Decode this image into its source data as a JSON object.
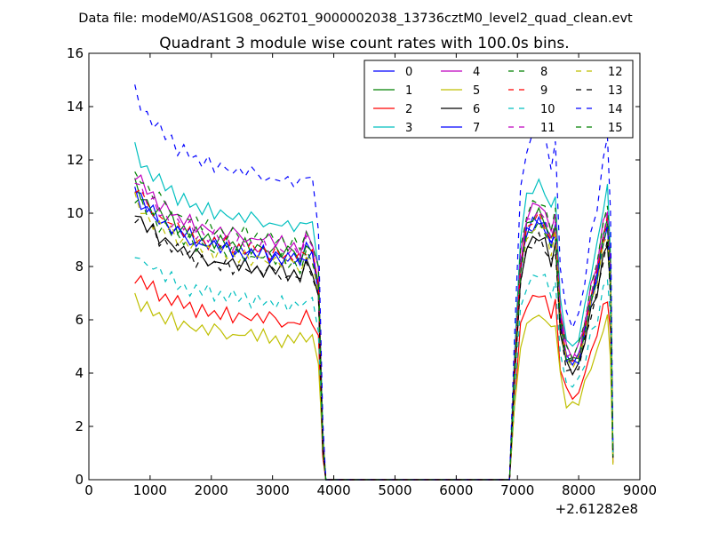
{
  "suptitle": "Data file: modeM0/AS1G08_062T01_9000002038_13736cztM0_level2_quad_clean.evt",
  "chart_data": {
    "type": "line",
    "title": "Quadrant 3 module wise count rates with 100.0s bins.",
    "xlabel": "",
    "ylabel": "",
    "x_offset_label": "+2.61282e8",
    "xlim": [
      0,
      9000
    ],
    "ylim": [
      0,
      16
    ],
    "x_ticks": [
      "0",
      "1000",
      "2000",
      "3000",
      "4000",
      "5000",
      "6000",
      "7000",
      "8000",
      "9000"
    ],
    "y_ticks": [
      "0",
      "2",
      "4",
      "6",
      "8",
      "10",
      "12",
      "14",
      "16"
    ],
    "legend": {
      "position": "top-right",
      "columns": 4
    },
    "x_segments": [
      [
        750,
        850,
        950,
        1050,
        1150,
        1250,
        1350,
        1450,
        1550,
        1650,
        1750,
        1850,
        1950,
        2050,
        2150,
        2250,
        2350,
        2450,
        2550,
        2650,
        2750,
        2850,
        2950,
        3050,
        3150,
        3250,
        3350,
        3450,
        3550,
        3650,
        3750,
        3820,
        3870
      ],
      [
        6870,
        6950,
        7050,
        7150,
        7250,
        7350,
        7450,
        7550,
        7620,
        7700,
        7800,
        7900,
        8000,
        8100,
        8200,
        8300,
        8400,
        8470,
        8520,
        8560
      ]
    ],
    "x_gap": [
      3870,
      6870
    ],
    "series": [
      {
        "name": "0",
        "color": "#0000ff",
        "dash": "solid",
        "factor": 1.0
      },
      {
        "name": "1",
        "color": "#008000",
        "dash": "solid",
        "factor": 1.02
      },
      {
        "name": "2",
        "color": "#ff0000",
        "dash": "solid",
        "factor": 0.71
      },
      {
        "name": "3",
        "color": "#00bfbf",
        "dash": "solid",
        "factor": 1.14
      },
      {
        "name": "4",
        "color": "#bf00bf",
        "dash": "solid",
        "factor": 1.06
      },
      {
        "name": "5",
        "color": "#bfbf00",
        "dash": "solid",
        "factor": 0.63
      },
      {
        "name": "6",
        "color": "#000000",
        "dash": "solid",
        "factor": 0.93
      },
      {
        "name": "7",
        "color": "#0000ff",
        "dash": "solid",
        "factor": 0.99
      },
      {
        "name": "8",
        "color": "#008000",
        "dash": "dashed",
        "factor": 1.07
      },
      {
        "name": "9",
        "color": "#ff0000",
        "dash": "dashed",
        "factor": 1.01
      },
      {
        "name": "10",
        "color": "#00bfbf",
        "dash": "dashed",
        "factor": 0.79
      },
      {
        "name": "11",
        "color": "#bf00bf",
        "dash": "dashed",
        "factor": 1.03
      },
      {
        "name": "12",
        "color": "#bfbf00",
        "dash": "dashed",
        "factor": 0.97
      },
      {
        "name": "13",
        "color": "#000000",
        "dash": "dashed",
        "factor": 0.92
      },
      {
        "name": "14",
        "color": "#0000ff",
        "dash": "dashed",
        "factor": 1.34
      },
      {
        "name": "15",
        "color": "#008000",
        "dash": "dashed",
        "factor": 0.98
      }
    ],
    "base_profile": [
      [
        10.8,
        10.5,
        10.2,
        10.0,
        9.8,
        9.6,
        9.5,
        9.3,
        9.2,
        9.1,
        9.0,
        8.9,
        8.85,
        8.8,
        8.75,
        8.7,
        8.65,
        8.6,
        8.6,
        8.55,
        8.5,
        8.5,
        8.45,
        8.4,
        8.35,
        8.3,
        8.3,
        8.2,
        8.6,
        8.4,
        7.2,
        1.5,
        0.0
      ],
      [
        0.0,
        4.0,
        8.0,
        9.3,
        9.6,
        9.8,
        9.5,
        8.8,
        9.4,
        6.0,
        4.6,
        4.4,
        4.6,
        5.6,
        6.8,
        7.6,
        9.0,
        9.6,
        7.5,
        0.9
      ]
    ],
    "noise": [
      [
        0.0,
        0.25,
        -0.15,
        0.3,
        -0.2,
        0.1,
        -0.3,
        0.2,
        -0.1,
        0.35,
        -0.25,
        0.15,
        -0.2,
        0.3,
        -0.1,
        0.2,
        -0.3,
        0.25,
        -0.15,
        0.1,
        -0.2,
        0.3,
        -0.25,
        0.15,
        0.0,
        -0.1,
        0.2,
        -0.15,
        0.3,
        0.1,
        -0.2,
        0.0,
        0.0
      ],
      [
        0.0,
        0.0,
        0.2,
        -0.15,
        0.25,
        -0.2,
        0.15,
        -0.1,
        0.2,
        -0.15,
        0.1,
        -0.1,
        0.15,
        -0.2,
        0.1,
        -0.15,
        0.2,
        -0.1,
        0.0,
        0.0
      ]
    ]
  }
}
